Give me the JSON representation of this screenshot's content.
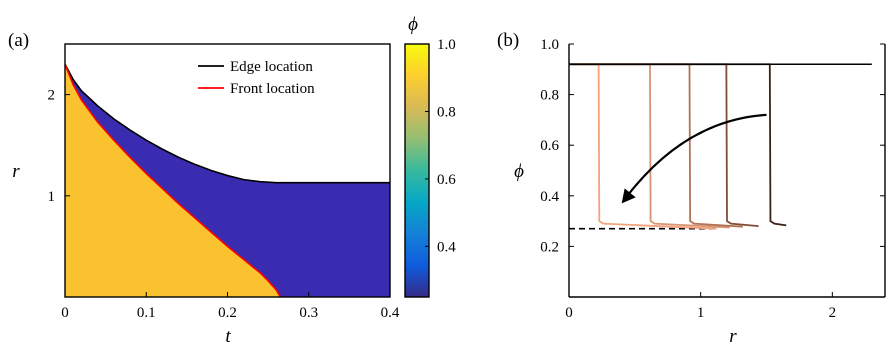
{
  "panel_a": {
    "label": "(a)",
    "colorbar_label": "ϕ"
  },
  "panel_b": {
    "label": "(b)"
  },
  "chart_data": [
    {
      "type": "heatmap",
      "panel": "(a)",
      "xlabel": "t",
      "ylabel": "r",
      "xlim": [
        0,
        0.4
      ],
      "ylim": [
        0,
        2.5
      ],
      "x_ticks": [
        "0",
        "0.1",
        "0.2",
        "0.3",
        "0.4"
      ],
      "x_tick_values": [
        0,
        0.1,
        0.2,
        0.3,
        0.4
      ],
      "y_ticks": [
        "1",
        "2"
      ],
      "y_tick_values": [
        1,
        2
      ],
      "colorbar": {
        "label": "ϕ",
        "range": [
          0.25,
          1.0
        ],
        "ticks": [
          "0.4",
          "0.6",
          "0.8",
          "1.0"
        ],
        "tick_values": [
          0.4,
          0.6,
          0.8,
          1.0
        ],
        "colormap": "parula",
        "colors": [
          "#352a87",
          "#0f5cdd",
          "#1481d6",
          "#06a7c6",
          "#38b99e",
          "#92bf73",
          "#d9ba56",
          "#fcce2e",
          "#f9fb0e"
        ]
      },
      "fill_colors": {
        "front_region": "#f9c22e",
        "outer_region": "#3a2cb0"
      },
      "legend_position": "top-right",
      "series": [
        {
          "name": "Edge location",
          "color": "#000000",
          "x": [
            0,
            0.01,
            0.02,
            0.04,
            0.06,
            0.08,
            0.1,
            0.12,
            0.14,
            0.16,
            0.18,
            0.2,
            0.22,
            0.24,
            0.26,
            0.27,
            0.3,
            0.35,
            0.4
          ],
          "y": [
            2.3,
            2.15,
            2.04,
            1.89,
            1.76,
            1.65,
            1.55,
            1.46,
            1.38,
            1.31,
            1.25,
            1.2,
            1.16,
            1.14,
            1.13,
            1.13,
            1.13,
            1.13,
            1.13
          ]
        },
        {
          "name": "Front location",
          "color": "#ff0000",
          "x": [
            0,
            0.01,
            0.02,
            0.04,
            0.06,
            0.08,
            0.1,
            0.12,
            0.14,
            0.16,
            0.18,
            0.2,
            0.22,
            0.24,
            0.25,
            0.26,
            0.265
          ],
          "y": [
            2.3,
            2.1,
            1.95,
            1.73,
            1.55,
            1.38,
            1.22,
            1.07,
            0.92,
            0.78,
            0.64,
            0.5,
            0.37,
            0.24,
            0.16,
            0.07,
            0.0
          ]
        }
      ]
    },
    {
      "type": "line",
      "panel": "(b)",
      "xlabel": "r",
      "ylabel": "ϕ",
      "xlim": [
        0,
        2.4
      ],
      "ylim": [
        0,
        1.0
      ],
      "x_ticks": [
        "0",
        "1",
        "2"
      ],
      "x_tick_values": [
        0,
        1,
        2
      ],
      "y_ticks": [
        "0.2",
        "0.4",
        "0.6",
        "0.8",
        "1.0"
      ],
      "y_tick_values": [
        0.2,
        0.4,
        0.6,
        0.8,
        1.0
      ],
      "plateau_high": 0.92,
      "plateau_low": 0.27,
      "series": [
        {
          "color": "#f2a37e",
          "front_r": 0.23,
          "tail_end_r": 1.12,
          "tail_y": [
            0.29,
            0.27
          ]
        },
        {
          "color": "#d79473",
          "front_r": 0.62,
          "tail_end_r": 1.22,
          "tail_y": [
            0.29,
            0.275
          ]
        },
        {
          "color": "#b07253",
          "front_r": 0.92,
          "tail_end_r": 1.32,
          "tail_y": [
            0.29,
            0.278
          ]
        },
        {
          "color": "#7e4d35",
          "front_r": 1.2,
          "tail_end_r": 1.44,
          "tail_y": [
            0.29,
            0.28
          ]
        },
        {
          "color": "#3a2217",
          "front_r": 1.53,
          "tail_end_r": 1.65,
          "tail_y": [
            0.29,
            0.283
          ]
        }
      ],
      "top_line": {
        "color": "#000000",
        "x": [
          0,
          2.3
        ],
        "y": 0.92
      },
      "dashed_line": {
        "color": "#000000",
        "x": [
          0,
          1.12
        ],
        "y": 0.27
      },
      "annotation_arrow": {
        "from": [
          1.5,
          0.72
        ],
        "to": [
          0.4,
          0.37
        ],
        "color": "#000000"
      }
    }
  ]
}
